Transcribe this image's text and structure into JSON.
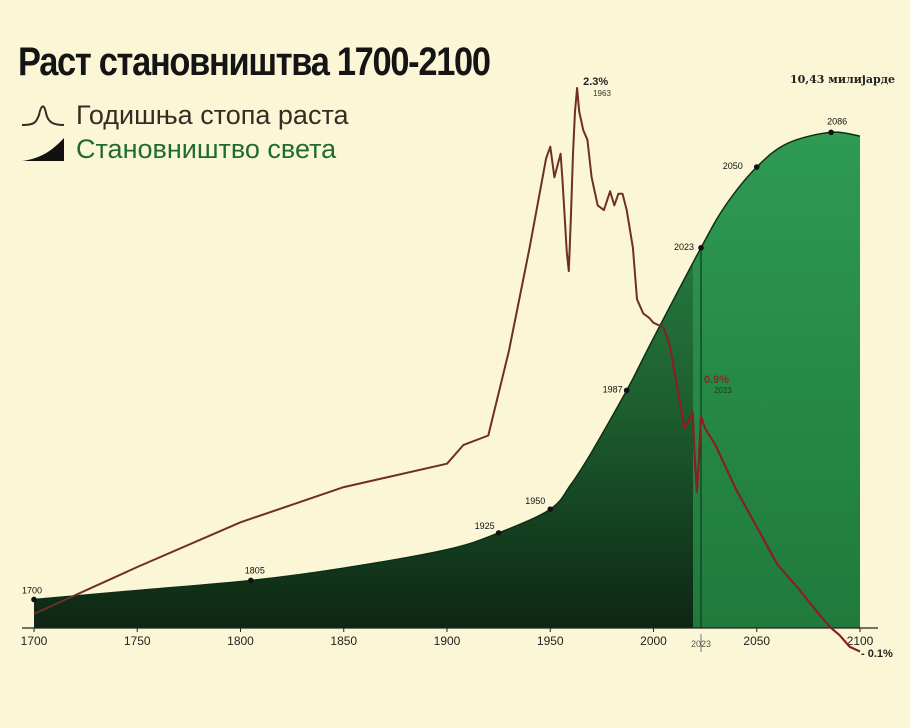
{
  "title": "Раст становништва 1700-2100",
  "legend": [
    {
      "label": "Годишња стопа раста",
      "color": "#6e2f25"
    },
    {
      "label": "Становништво света",
      "color": "#1b5e2d"
    }
  ],
  "peak_note": "10,43 милијарде",
  "chart_data": {
    "type": "area",
    "xlim": [
      1700,
      2100
    ],
    "xticks": [
      "1700",
      "1750",
      "1800",
      "1850",
      "1900",
      "1950",
      "2000",
      "2050",
      "2100"
    ],
    "projection_start": 2023,
    "projection_tick": "2023",
    "population": {
      "name": "Становништво света",
      "unit": "billions",
      "ylim": [
        0,
        10.9
      ],
      "x": [
        1700,
        1750,
        1805,
        1850,
        1900,
        1925,
        1950,
        1960,
        1970,
        1987,
        2000,
        2023,
        2035,
        2050,
        2065,
        2086,
        2100
      ],
      "y": [
        0.6,
        0.79,
        1.0,
        1.26,
        1.65,
        2.0,
        2.5,
        3.02,
        3.7,
        5.0,
        6.1,
        8.0,
        8.9,
        9.7,
        10.2,
        10.43,
        10.35
      ],
      "markers": [
        {
          "year": 1700,
          "label": "1700"
        },
        {
          "year": 1805,
          "label": "1805"
        },
        {
          "year": 1925,
          "label": "1925"
        },
        {
          "year": 1950,
          "label": "1950"
        },
        {
          "year": 1987,
          "label": "1987"
        },
        {
          "year": 2023,
          "label": "2023"
        },
        {
          "year": 2050,
          "label": "2050"
        },
        {
          "year": 2086,
          "label": "2086"
        }
      ]
    },
    "growth_rate": {
      "name": "Годишња стопа раста",
      "unit": "%",
      "ylim": [
        -0.1,
        2.3
      ],
      "x": [
        1700,
        1750,
        1800,
        1850,
        1900,
        1908,
        1920,
        1930,
        1940,
        1948,
        1950,
        1952,
        1955,
        1956,
        1958,
        1959,
        1960,
        1961,
        1962,
        1963,
        1964,
        1966,
        1968,
        1970,
        1973,
        1976,
        1979,
        1981,
        1983,
        1985,
        1987,
        1990,
        1992,
        1995,
        1998,
        2000,
        2005,
        2008,
        2012,
        2015,
        2019,
        2020,
        2021,
        2022,
        2023,
        2025,
        2030,
        2040,
        2050,
        2060,
        2070,
        2080,
        2086,
        2090,
        2095,
        2100
      ],
      "y": [
        0.06,
        0.26,
        0.45,
        0.6,
        0.7,
        0.78,
        0.82,
        1.18,
        1.62,
        2.0,
        2.05,
        1.92,
        2.02,
        1.9,
        1.6,
        1.52,
        1.75,
        2.02,
        2.2,
        2.3,
        2.2,
        2.12,
        2.08,
        1.92,
        1.8,
        1.78,
        1.86,
        1.8,
        1.85,
        1.85,
        1.78,
        1.62,
        1.4,
        1.34,
        1.32,
        1.3,
        1.28,
        1.2,
        1.0,
        0.85,
        0.92,
        0.72,
        0.58,
        0.72,
        0.9,
        0.85,
        0.78,
        0.59,
        0.43,
        0.27,
        0.17,
        0.06,
        0.0,
        -0.03,
        -0.08,
        -0.1
      ],
      "labels": [
        {
          "year": 1963,
          "value": "2.3%",
          "year_label": "1963"
        },
        {
          "year": 2023,
          "value": "0.9%",
          "year_label": "2023"
        },
        {
          "year": 2100,
          "value": "- 0.1%"
        }
      ]
    }
  }
}
